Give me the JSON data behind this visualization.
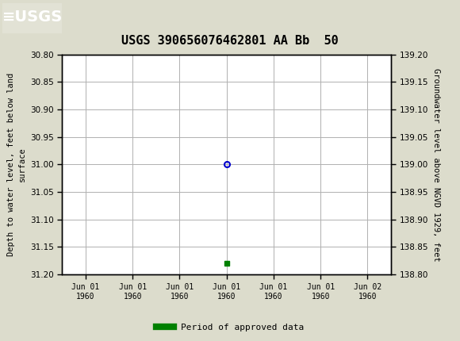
{
  "title": "USGS 390656076462801 AA Bb  50",
  "title_fontsize": 11,
  "header_bg_color": "#1a6b3c",
  "bg_color": "#dcdccc",
  "plot_bg_color": "#ffffff",
  "grid_color": "#b0b0b0",
  "ylabel_left": "Depth to water level, feet below land\nsurface",
  "ylabel_right": "Groundwater level above NGVD 1929, feet",
  "ylim_left_top": 30.8,
  "ylim_left_bottom": 31.2,
  "ylim_right_top": 139.2,
  "ylim_right_bottom": 138.8,
  "yticks_left": [
    30.8,
    30.85,
    30.9,
    30.95,
    31.0,
    31.05,
    31.1,
    31.15,
    31.2
  ],
  "yticks_right": [
    139.2,
    139.15,
    139.1,
    139.05,
    139.0,
    138.95,
    138.9,
    138.85,
    138.8
  ],
  "data_point_y": 31.0,
  "data_point_color": "#0000cc",
  "data_point_markersize": 5,
  "green_marker_y": 31.18,
  "green_marker_color": "#008000",
  "legend_label": "Period of approved data",
  "x_ticks": [
    -3,
    -2,
    -1,
    0,
    1,
    2,
    3
  ],
  "xlim": [
    -3.5,
    3.5
  ],
  "data_x": 0,
  "green_x": 0,
  "xticklabels": [
    "Jun 01\n1960",
    "Jun 01\n1960",
    "Jun 01\n1960",
    "Jun 01\n1960",
    "Jun 01\n1960",
    "Jun 01\n1960",
    "Jun 02\n1960"
  ]
}
